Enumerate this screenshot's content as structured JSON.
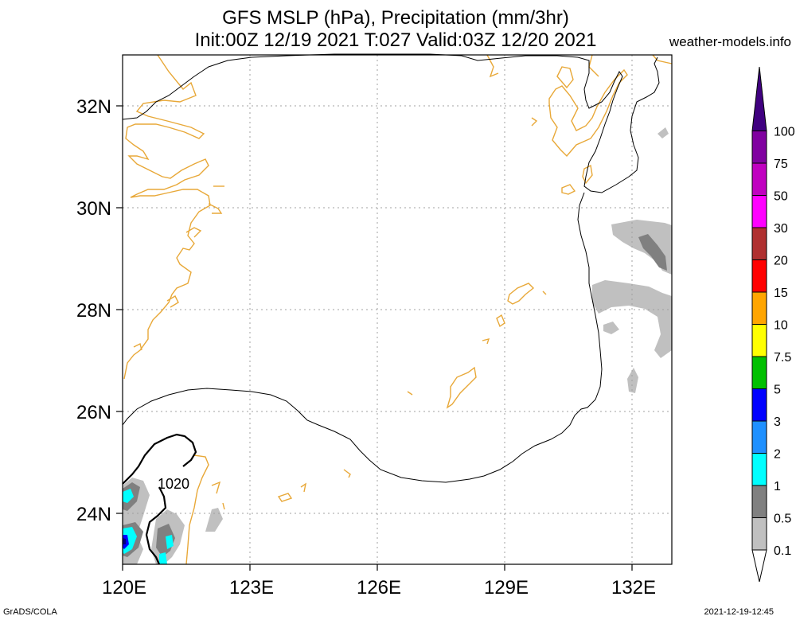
{
  "header": {
    "title_line1": "GFS MSLP (hPa), Precipitation (mm/3hr)",
    "title_line2": "Init:00Z 12/19 2021 T:027 Valid:03Z 12/20 2021",
    "site": "weather-models.info"
  },
  "footer": {
    "left": "GrADS/COLA",
    "right": "2021-12-19-12:45"
  },
  "map": {
    "lat_labels": [
      "32N",
      "30N",
      "28N",
      "26N",
      "24N"
    ],
    "lon_labels": [
      "120E",
      "123E",
      "126E",
      "129E",
      "132E"
    ],
    "contour_label": "1020",
    "grid": true,
    "coastline_color": "#e8a838"
  },
  "colorbar": {
    "labels": [
      "0.1",
      "0.5",
      "1",
      "2",
      "3",
      "5",
      "7.5",
      "10",
      "15",
      "20",
      "30",
      "50",
      "75",
      "100"
    ],
    "colors": [
      "#c0c0c0",
      "#808080",
      "#00ffff",
      "#1e90ff",
      "#0000ff",
      "#00c000",
      "#ffff00",
      "#ffa500",
      "#ff0000",
      "#b03030",
      "#ff00ff",
      "#c000c0",
      "#8000a0",
      "#400080"
    ]
  }
}
